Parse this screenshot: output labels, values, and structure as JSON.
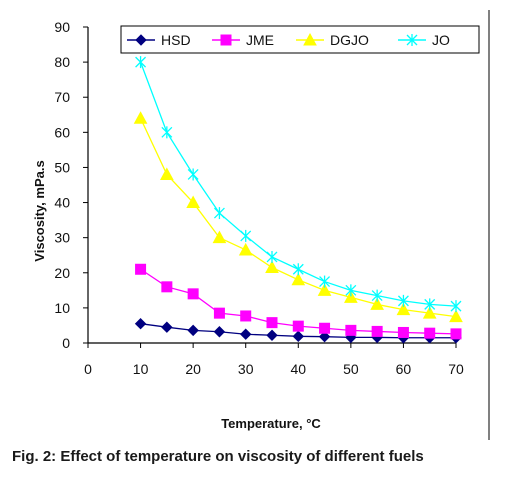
{
  "chart_data": {
    "type": "line",
    "title": "",
    "xlabel": "Temperature, °C",
    "ylabel": "Viscosity, mPa.s",
    "x": [
      10,
      15,
      20,
      25,
      30,
      35,
      40,
      45,
      50,
      55,
      60,
      65,
      70
    ],
    "xlim": [
      0,
      70
    ],
    "ylim": [
      0,
      90
    ],
    "xticks": [
      0,
      10,
      20,
      30,
      40,
      50,
      60,
      70
    ],
    "yticks": [
      0,
      10,
      20,
      30,
      40,
      50,
      60,
      70,
      80,
      90
    ],
    "grid": false,
    "legend_position": "top",
    "series": [
      {
        "name": "HSD",
        "color": "#000080",
        "marker": "diamond",
        "values": [
          5.5,
          4.5,
          3.6,
          3.2,
          2.5,
          2.2,
          1.9,
          1.8,
          1.6,
          1.6,
          1.5,
          1.5,
          1.5
        ]
      },
      {
        "name": "JME",
        "color": "#ff00ff",
        "marker": "square",
        "values": [
          21,
          16,
          14,
          8.5,
          7.7,
          5.8,
          4.8,
          4.2,
          3.6,
          3.3,
          3.0,
          2.8,
          2.6
        ]
      },
      {
        "name": "DGJO",
        "color": "#ffff00",
        "marker": "triangle",
        "values": [
          64,
          48,
          40,
          30,
          26.5,
          21.5,
          18,
          15,
          13,
          11,
          9.5,
          8.5,
          7.5
        ]
      },
      {
        "name": "JO",
        "color": "#00ffff",
        "marker": "x",
        "values": [
          80,
          60,
          48,
          37,
          30.5,
          24.5,
          21,
          17.5,
          15,
          13.5,
          12,
          11,
          10.5
        ]
      }
    ]
  },
  "caption": "Fig. 2: Effect of temperature on viscosity of different fuels"
}
